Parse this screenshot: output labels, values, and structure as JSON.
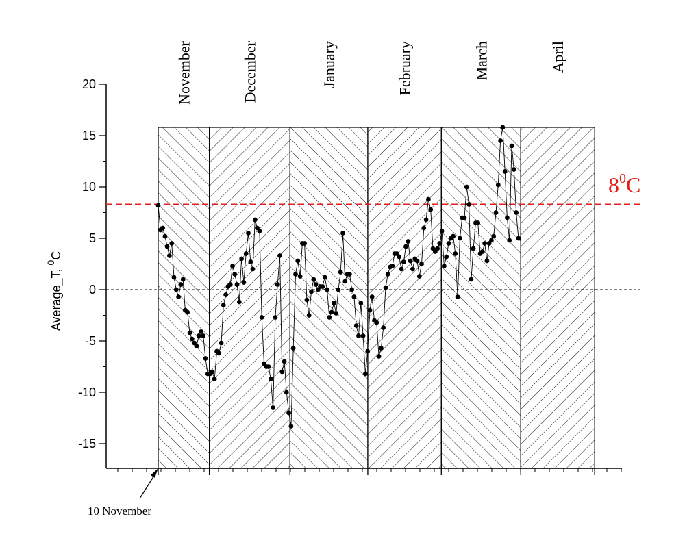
{
  "chart_data": {
    "type": "line",
    "title": "",
    "xlabel": "",
    "ylabel": "Average_T, ",
    "ylabel_unit_sup": "0",
    "ylabel_unit": "C",
    "ylim": [
      -17.5,
      20
    ],
    "yticks": [
      "20",
      "15",
      "10",
      "5",
      "0",
      "-5",
      "-10",
      "-15"
    ],
    "ytick_values": [
      20,
      15,
      10,
      5,
      0,
      -5,
      -10,
      -15
    ],
    "months": [
      {
        "name": "November",
        "start_day": 0,
        "end_day": 13
      },
      {
        "name": "December",
        "start_day": 13,
        "end_day": 33.5
      },
      {
        "name": "January",
        "start_day": 33.5,
        "end_day": 53.3
      },
      {
        "name": "February",
        "start_day": 53.3,
        "end_day": 72
      },
      {
        "name": "March",
        "start_day": 72,
        "end_day": 92.2
      },
      {
        "name": "April",
        "start_day": 92.2,
        "end_day": 111
      }
    ],
    "month_band_top_value": 15.8,
    "threshold": {
      "value": 8.3,
      "label": "8",
      "label_sup": "0",
      "label_unit": "C",
      "color": "#e0201c"
    },
    "zero_line": {
      "value": 0
    },
    "start_annotation": "10 November",
    "series": [
      {
        "name": "Average_T",
        "day_step": 0.5726,
        "values": [
          8.2,
          5.8,
          6.0,
          5.2,
          4.2,
          3.3,
          4.5,
          1.2,
          0.0,
          -0.7,
          0.5,
          1.0,
          -2.0,
          -2.2,
          -4.2,
          -4.8,
          -5.2,
          -5.5,
          -4.5,
          -4.1,
          -4.5,
          -6.7,
          -8.2,
          -8.2,
          -8.0,
          -8.7,
          -6.0,
          -6.2,
          -5.2,
          -1.5,
          -0.5,
          0.3,
          0.5,
          2.3,
          1.5,
          0.5,
          -1.2,
          3.0,
          0.7,
          3.5,
          5.5,
          2.7,
          2.0,
          6.8,
          6.0,
          5.7,
          -2.7,
          -7.2,
          -7.5,
          -7.5,
          -8.7,
          -11.5,
          -2.7,
          0.5,
          3.3,
          -8.0,
          -7.0,
          -10.0,
          -12.0,
          -13.3,
          -5.7,
          1.5,
          2.8,
          1.3,
          4.5,
          4.5,
          -1.0,
          -2.5,
          -0.2,
          1.0,
          0.5,
          0.0,
          0.3,
          0.3,
          1.2,
          0.0,
          -2.7,
          -2.2,
          -1.3,
          -2.3,
          0.0,
          1.7,
          5.5,
          0.8,
          1.5,
          1.5,
          0.0,
          -0.7,
          -3.5,
          -4.5,
          -1.3,
          -4.5,
          -8.2,
          -6.0,
          -2.0,
          -0.7,
          -3.0,
          -3.2,
          -6.5,
          -5.7,
          -3.7,
          0.2,
          1.5,
          2.2,
          2.3,
          3.5,
          3.5,
          3.2,
          2.0,
          2.7,
          4.2,
          4.7,
          2.8,
          2.0,
          3.0,
          2.8,
          1.3,
          2.5,
          6.0,
          6.8,
          8.8,
          7.8,
          4.0,
          3.7,
          4.0,
          4.5,
          5.7,
          2.3,
          3.2,
          4.5,
          5.0,
          5.2,
          3.5,
          -0.7,
          5.0,
          7.0,
          7.0,
          10.0,
          8.3,
          1.0,
          4.0,
          6.5,
          6.5,
          3.5,
          3.7,
          4.5,
          2.8,
          4.5,
          4.8,
          5.2,
          7.5,
          10.2,
          14.5,
          15.8,
          11.5,
          7.0,
          4.8,
          14.0,
          11.7,
          7.5,
          5.0
        ]
      }
    ]
  }
}
